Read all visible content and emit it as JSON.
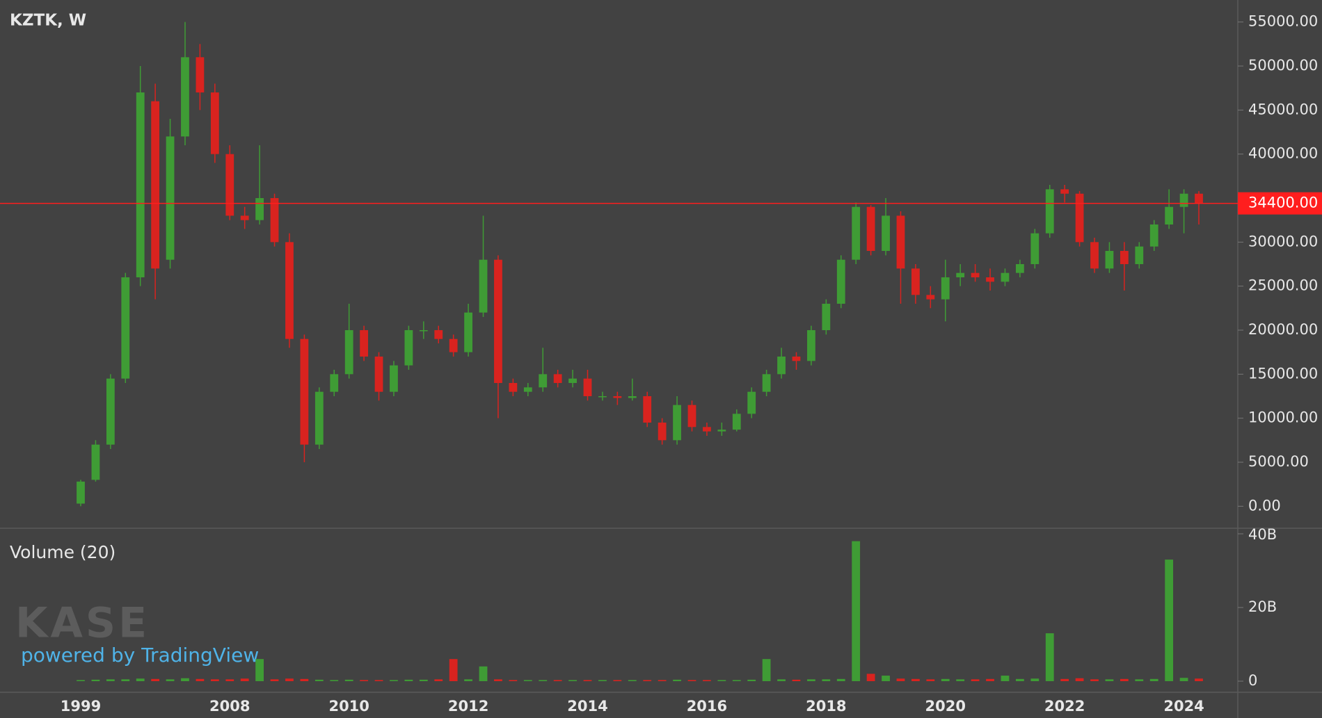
{
  "chart_data": {
    "type": "candlestick",
    "title": "KZTK, W",
    "volume_title": "Volume (20)",
    "watermark": {
      "logo": "KASE",
      "credit": "powered by TradingView"
    },
    "up_color": "#3f9c35",
    "down_color": "#d9231f",
    "categories": [
      "1999",
      null,
      null,
      null,
      null,
      null,
      null,
      null,
      null,
      null,
      "2008",
      null,
      null,
      null,
      null,
      null,
      null,
      null,
      "2010",
      null,
      null,
      null,
      null,
      null,
      null,
      null,
      "2012",
      null,
      null,
      null,
      null,
      null,
      null,
      null,
      "2014",
      null,
      null,
      null,
      null,
      null,
      null,
      null,
      "2016",
      null,
      null,
      null,
      null,
      null,
      null,
      null,
      "2018",
      null,
      null,
      null,
      null,
      null,
      null,
      null,
      "2020",
      null,
      null,
      null,
      null,
      null,
      null,
      null,
      "2022",
      null,
      null,
      null,
      null,
      null,
      null,
      null,
      "2024",
      null
    ],
    "open": [
      300,
      3000,
      7000,
      14500,
      26000,
      46000,
      28000,
      42000,
      51000,
      47000,
      40000,
      33000,
      32500,
      35000,
      30000,
      19000,
      7000,
      13000,
      15000,
      20000,
      17000,
      13000,
      16000,
      20000,
      20000,
      19000,
      17500,
      22000,
      28000,
      14000,
      13000,
      13500,
      15000,
      14000,
      14500,
      12500,
      12500,
      12300,
      12500,
      9500,
      7500,
      11500,
      9000,
      8500,
      8700,
      10500,
      13000,
      15000,
      17000,
      16500,
      20000,
      23000,
      28000,
      34000,
      29000,
      33000,
      27000,
      24000,
      23500,
      26000,
      26500,
      26000,
      25500,
      26500,
      27500,
      31000,
      36000,
      35500,
      30000,
      27000,
      29000,
      27500,
      29500,
      32000,
      34000,
      35500
    ],
    "high": [
      3000,
      7500,
      15000,
      26500,
      50000,
      48000,
      44000,
      55000,
      52500,
      48000,
      41000,
      34000,
      41000,
      35500,
      31000,
      19500,
      13500,
      15500,
      23000,
      20500,
      17500,
      16500,
      20500,
      21000,
      20500,
      19500,
      23000,
      33000,
      28500,
      14500,
      14000,
      18000,
      15500,
      15500,
      15500,
      13000,
      13000,
      14500,
      13000,
      10000,
      12500,
      12000,
      9500,
      9500,
      11000,
      13500,
      15500,
      18000,
      17500,
      20500,
      23500,
      28500,
      34500,
      34200,
      35000,
      33500,
      27500,
      25000,
      28000,
      27500,
      27500,
      27000,
      27000,
      28000,
      31500,
      36500,
      36500,
      35800,
      30500,
      30000,
      30000,
      30000,
      32500,
      36000,
      36000,
      35800
    ],
    "low": [
      0,
      2800,
      6500,
      14000,
      25000,
      23500,
      27000,
      41000,
      45000,
      39000,
      32500,
      31500,
      32000,
      29500,
      18000,
      5000,
      6500,
      12500,
      14500,
      16500,
      12000,
      12500,
      15500,
      19000,
      18500,
      17000,
      17000,
      21500,
      10000,
      12500,
      12500,
      13000,
      13500,
      13500,
      12000,
      12000,
      11500,
      12000,
      9000,
      7000,
      7000,
      8500,
      8000,
      8000,
      8500,
      10000,
      12500,
      14500,
      15500,
      16000,
      19500,
      22500,
      27500,
      28500,
      28500,
      23000,
      23000,
      22500,
      21000,
      25000,
      25500,
      24500,
      25000,
      26000,
      27000,
      30500,
      34500,
      29500,
      26500,
      26500,
      24500,
      27000,
      29000,
      31500,
      31000,
      32000
    ],
    "close": [
      2800,
      7000,
      14500,
      26000,
      47000,
      27000,
      42000,
      51000,
      47000,
      40000,
      33000,
      32500,
      35000,
      30000,
      19000,
      7000,
      13000,
      15000,
      20000,
      17000,
      13000,
      16000,
      20000,
      20000,
      19000,
      17500,
      22000,
      28000,
      14000,
      13000,
      13500,
      15000,
      14000,
      14500,
      12500,
      12500,
      12300,
      12500,
      9500,
      7500,
      11500,
      9000,
      8500,
      8700,
      10500,
      13000,
      15000,
      17000,
      16500,
      20000,
      23000,
      28000,
      34000,
      29000,
      33000,
      27000,
      24000,
      23500,
      26000,
      26500,
      26000,
      25500,
      26500,
      27500,
      31000,
      36000,
      35500,
      30000,
      27000,
      29000,
      27500,
      29500,
      32000,
      34000,
      35500,
      34400
    ],
    "volume": [
      300000000,
      400000000,
      500000000,
      500000000,
      700000000,
      600000000,
      500000000,
      800000000,
      600000000,
      500000000,
      500000000,
      700000000,
      6000000000,
      500000000,
      700000000,
      600000000,
      400000000,
      300000000,
      400000000,
      300000000,
      300000000,
      300000000,
      400000000,
      400000000,
      500000000,
      6000000000,
      500000000,
      4000000000,
      500000000,
      300000000,
      300000000,
      300000000,
      300000000,
      300000000,
      300000000,
      300000000,
      300000000,
      300000000,
      300000000,
      300000000,
      400000000,
      300000000,
      300000000,
      300000000,
      300000000,
      400000000,
      6000000000,
      500000000,
      400000000,
      500000000,
      500000000,
      600000000,
      38000000000,
      2000000000,
      1500000000,
      700000000,
      600000000,
      500000000,
      600000000,
      500000000,
      500000000,
      600000000,
      1500000000,
      600000000,
      700000000,
      13000000000,
      600000000,
      800000000,
      500000000,
      500000000,
      600000000,
      500000000,
      600000000,
      33000000000,
      900000000,
      700000000
    ],
    "ylim": [
      -2500,
      57500
    ],
    "yticks": [
      {
        "value": 0,
        "label": "0.00"
      },
      {
        "value": 5000,
        "label": "5000.00"
      },
      {
        "value": 10000,
        "label": "10000.00"
      },
      {
        "value": 15000,
        "label": "15000.00"
      },
      {
        "value": 20000,
        "label": "20000.00"
      },
      {
        "value": 25000,
        "label": "25000.00"
      },
      {
        "value": 30000,
        "label": "30000.00"
      },
      {
        "value": 40000,
        "label": "40000.00"
      },
      {
        "value": 45000,
        "label": "45000.00"
      },
      {
        "value": 50000,
        "label": "50000.00"
      },
      {
        "value": 55000,
        "label": "55000.00"
      }
    ],
    "last_price": {
      "value": 34400,
      "label": "34400.00",
      "color": "#ff1e1e"
    },
    "volume_ylim": [
      0,
      40000000000
    ],
    "volume_yticks": [
      0,
      {
        "value": 20000000000,
        "label": "20B"
      },
      {
        "value": 40000000000,
        "label": "40B"
      }
    ]
  }
}
